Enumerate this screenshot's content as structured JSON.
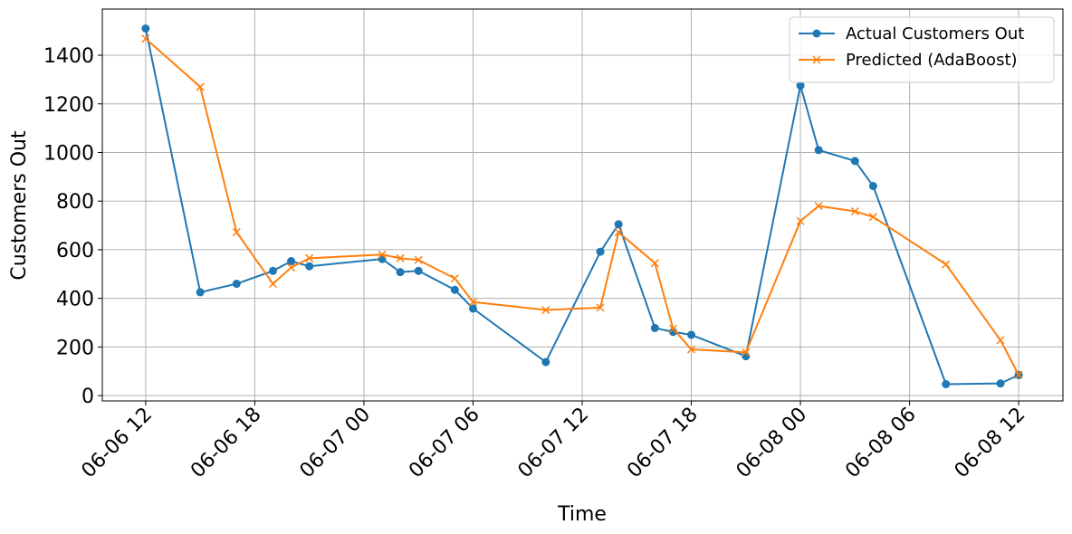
{
  "chart_data": {
    "type": "line",
    "x_label": "Time",
    "y_label": "Customers Out",
    "x": [
      "06-06 12",
      "06-06 15",
      "06-06 17",
      "06-06 19",
      "06-06 20",
      "06-06 21",
      "06-07 01",
      "06-07 02",
      "06-07 03",
      "06-07 05",
      "06-07 06",
      "06-07 10",
      "06-07 13",
      "06-07 14",
      "06-07 16",
      "06-07 17",
      "06-07 18",
      "06-07 21",
      "06-08 00",
      "06-08 01",
      "06-08 03",
      "06-08 04",
      "06-08 08",
      "06-08 11",
      "06-08 12"
    ],
    "series": [
      {
        "name": "Actual Customers Out",
        "color": "#1f77b4",
        "marker": "circle",
        "values": [
          1510,
          425,
          460,
          513,
          553,
          532,
          562,
          508,
          513,
          435,
          358,
          138,
          592,
          705,
          278,
          262,
          250,
          162,
          1275,
          1010,
          965,
          862,
          47,
          50,
          85
        ]
      },
      {
        "name": "Predicted (AdaBoost)",
        "color": "#ff7f0e",
        "marker": "x",
        "values": [
          1468,
          1270,
          672,
          460,
          527,
          565,
          580,
          565,
          558,
          482,
          385,
          352,
          362,
          672,
          545,
          275,
          190,
          178,
          718,
          780,
          758,
          735,
          540,
          228,
          85
        ]
      }
    ],
    "xlim": [
      "06-06 09:37",
      "06-08 14:26"
    ],
    "xticks": [
      "06-06 12",
      "06-06 18",
      "06-07 00",
      "06-07 06",
      "06-07 12",
      "06-07 18",
      "06-08 00",
      "06-08 06",
      "06-08 12"
    ],
    "ylim": [
      -22,
      1590
    ],
    "yticks": [
      0,
      200,
      400,
      600,
      800,
      1000,
      1200,
      1400
    ],
    "grid": true,
    "legend": "upper right"
  }
}
